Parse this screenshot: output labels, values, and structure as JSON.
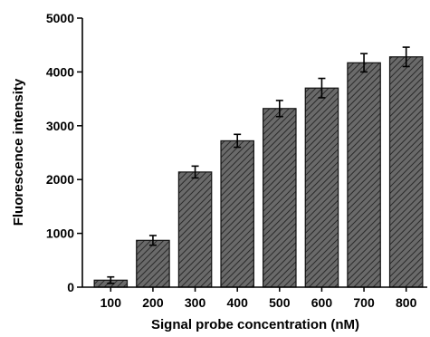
{
  "chart_data": {
    "type": "bar",
    "title": "",
    "xlabel": "Signal probe concentration (nM)",
    "ylabel": "Fluorescence intensity",
    "categories": [
      "100",
      "200",
      "300",
      "400",
      "500",
      "600",
      "700",
      "800"
    ],
    "values": [
      130,
      870,
      2140,
      2720,
      3320,
      3700,
      4170,
      4280
    ],
    "errors": [
      60,
      90,
      110,
      120,
      150,
      180,
      170,
      180
    ],
    "ylim": [
      0,
      5000
    ],
    "yticks": [
      "0",
      "1000",
      "2000",
      "3000",
      "4000",
      "5000"
    ],
    "ytick_values": [
      0,
      1000,
      2000,
      3000,
      4000,
      5000
    ],
    "bar_color": "#555555",
    "bar_pattern": "diagonal-hatch",
    "grid": false,
    "legend": "none"
  }
}
